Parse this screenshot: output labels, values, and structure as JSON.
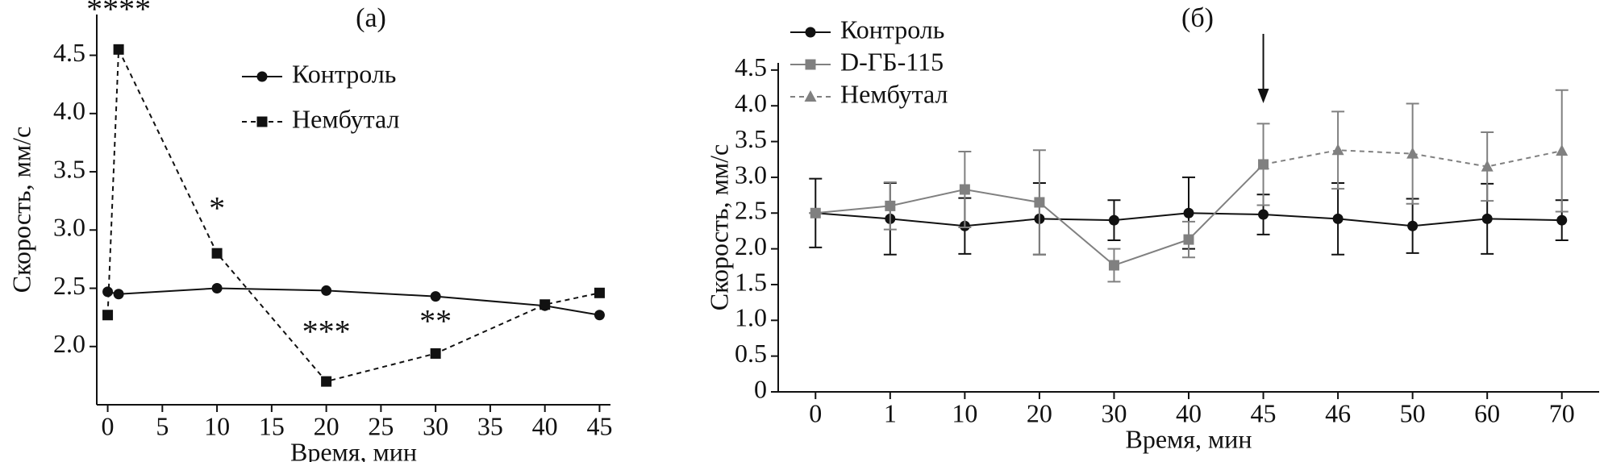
{
  "chart_data": [
    {
      "type": "line",
      "title": "(а)",
      "xlabel": "Время, мин",
      "ylabel": "Скорость, мм/с",
      "xlim": [
        -1,
        46
      ],
      "xticks": [
        0,
        5,
        10,
        15,
        20,
        25,
        30,
        35,
        40,
        45
      ],
      "ylim": [
        1.5,
        4.85
      ],
      "yticks": [
        {
          "value": 2,
          "label": "2.0"
        },
        2.5,
        {
          "value": 3,
          "label": "3.0"
        },
        3.5,
        {
          "value": 4,
          "label": "4.0"
        },
        4.5
      ],
      "x": [
        0,
        1,
        10,
        20,
        30,
        40,
        45
      ],
      "series": [
        {
          "name": "Контроль",
          "color": "#111111",
          "marker": "circle",
          "linestyle": "solid",
          "values": [
            2.47,
            2.45,
            2.5,
            2.48,
            2.43,
            2.35,
            2.27
          ]
        },
        {
          "name": "Нембутал",
          "color": "#111111",
          "marker": "square",
          "linestyle": "dashed",
          "values": [
            2.27,
            4.55,
            2.8,
            1.7,
            1.94,
            2.36,
            2.46
          ]
        }
      ],
      "annotations": [
        "****",
        "*",
        "***",
        "**"
      ]
    },
    {
      "type": "errorline",
      "title": "(б)",
      "xlabel": "Время, мин",
      "ylabel": "Скорость, мм/с",
      "categories": [
        "0",
        "1",
        "10",
        "20",
        "30",
        "40",
        "45",
        "46",
        "50",
        "60",
        "70"
      ],
      "ylim": [
        0,
        4.6
      ],
      "yticks": [
        0,
        0.5,
        {
          "value": 1,
          "label": "1.0"
        },
        1.5,
        {
          "value": 2,
          "label": "2.0"
        },
        2.5,
        {
          "value": 3,
          "label": "3.0"
        },
        3.5,
        {
          "value": 4,
          "label": "4.0"
        },
        4.5
      ],
      "series": [
        {
          "name": "Контроль",
          "color": "#111111",
          "marker": "circle",
          "linestyle": "solid",
          "values": [
            2.5,
            2.42,
            2.32,
            2.42,
            2.4,
            2.5,
            2.48,
            2.42,
            2.32,
            2.42,
            2.4
          ],
          "errors": [
            0.48,
            0.5,
            0.39,
            0.5,
            0.28,
            0.5,
            0.28,
            0.5,
            0.38,
            0.49,
            0.28
          ]
        },
        {
          "name": "D-ГБ-115",
          "color": "#808080",
          "marker": "square",
          "linestyle": "solid",
          "values": [
            2.5,
            2.6,
            2.83,
            2.65,
            1.77,
            2.13,
            3.18,
            null,
            null,
            null,
            null
          ],
          "errors": [
            0,
            0.33,
            0.53,
            0.73,
            0.23,
            0.25,
            0.57,
            null,
            null,
            null,
            null
          ]
        },
        {
          "name": "Нембутал",
          "color": "#808080",
          "marker": "triangle",
          "linestyle": "dashed",
          "values": [
            null,
            null,
            null,
            null,
            null,
            null,
            3.18,
            3.38,
            3.33,
            3.15,
            3.37
          ],
          "errors": [
            null,
            null,
            null,
            null,
            null,
            null,
            null,
            0.54,
            0.7,
            0.48,
            0.85
          ]
        }
      ]
    }
  ]
}
